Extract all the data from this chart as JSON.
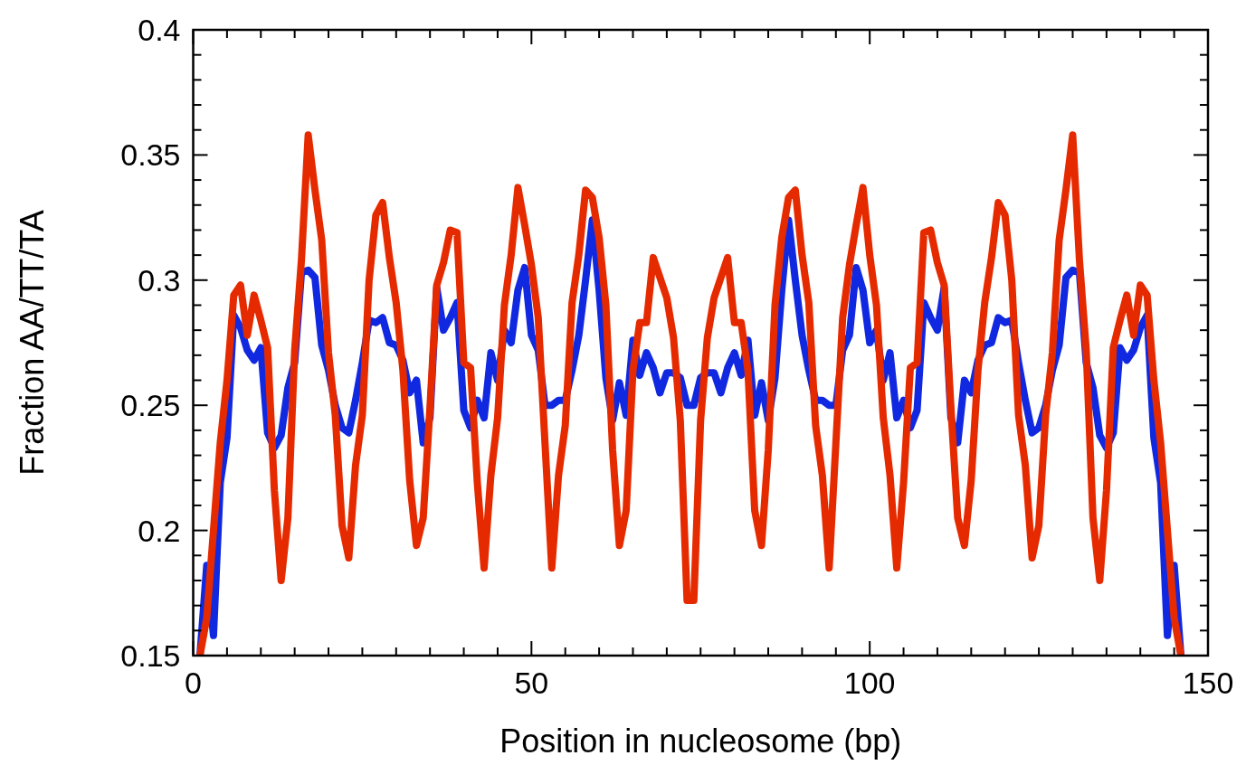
{
  "chart_data": {
    "type": "line",
    "xlabel": "Position in nucleosome (bp)",
    "ylabel": "Fraction AA/TT/TA",
    "xlim": [
      0,
      150
    ],
    "ylim": [
      0.15,
      0.4
    ],
    "xticks": [
      0,
      {
        "value": 5,
        "label": null
      },
      {
        "value": 10,
        "label": null
      },
      {
        "value": 15,
        "label": null
      },
      {
        "value": 20,
        "label": null
      },
      {
        "value": 25,
        "label": null
      },
      {
        "value": 30,
        "label": null
      },
      {
        "value": 35,
        "label": null
      },
      {
        "value": 40,
        "label": null
      },
      {
        "value": 45,
        "label": null
      },
      50,
      {
        "value": 55,
        "label": null
      },
      {
        "value": 60,
        "label": null
      },
      {
        "value": 65,
        "label": null
      },
      {
        "value": 70,
        "label": null
      },
      {
        "value": 75,
        "label": null
      },
      {
        "value": 80,
        "label": null
      },
      {
        "value": 85,
        "label": null
      },
      {
        "value": 90,
        "label": null
      },
      {
        "value": 95,
        "label": null
      },
      100,
      {
        "value": 105,
        "label": null
      },
      {
        "value": 110,
        "label": null
      },
      {
        "value": 115,
        "label": null
      },
      {
        "value": 120,
        "label": null
      },
      {
        "value": 125,
        "label": null
      },
      {
        "value": 130,
        "label": null
      },
      {
        "value": 135,
        "label": null
      },
      {
        "value": 140,
        "label": null
      },
      {
        "value": 145,
        "label": null
      },
      150
    ],
    "yticks": [
      0.15,
      {
        "value": 0.16,
        "label": null
      },
      {
        "value": 0.17,
        "label": null
      },
      {
        "value": 0.18,
        "label": null
      },
      {
        "value": 0.19,
        "label": null
      },
      0.2,
      {
        "value": 0.21,
        "label": null
      },
      {
        "value": 0.22,
        "label": null
      },
      {
        "value": 0.23,
        "label": null
      },
      {
        "value": 0.24,
        "label": null
      },
      0.25,
      {
        "value": 0.26,
        "label": null
      },
      {
        "value": 0.27,
        "label": null
      },
      {
        "value": 0.28,
        "label": null
      },
      {
        "value": 0.29,
        "label": null
      },
      0.3,
      {
        "value": 0.31,
        "label": null
      },
      {
        "value": 0.32,
        "label": null
      },
      {
        "value": 0.33,
        "label": null
      },
      {
        "value": 0.34,
        "label": null
      },
      0.35,
      {
        "value": 0.36,
        "label": null
      },
      {
        "value": 0.37,
        "label": null
      },
      {
        "value": 0.38,
        "label": null
      },
      {
        "value": 0.39,
        "label": null
      },
      0.4
    ],
    "grid": false,
    "marker": "none",
    "line_style": "solid",
    "x": [
      1,
      2,
      3,
      4,
      5,
      6,
      7,
      8,
      9,
      10,
      11,
      12,
      13,
      14,
      15,
      16,
      17,
      18,
      19,
      20,
      21,
      22,
      23,
      24,
      25,
      26,
      27,
      28,
      29,
      30,
      31,
      32,
      33,
      34,
      35,
      36,
      37,
      38,
      39,
      40,
      41,
      42,
      43,
      44,
      45,
      46,
      47,
      48,
      49,
      50,
      51,
      52,
      53,
      54,
      55,
      56,
      57,
      58,
      59,
      60,
      61,
      62,
      63,
      64,
      65,
      66,
      67,
      68,
      69,
      70,
      71,
      72,
      73,
      74,
      75,
      76,
      77,
      78,
      79,
      80,
      81,
      82,
      83,
      84,
      85,
      86,
      87,
      88,
      89,
      90,
      91,
      92,
      93,
      94,
      95,
      96,
      97,
      98,
      99,
      100,
      101,
      102,
      103,
      104,
      105,
      106,
      107,
      108,
      109,
      110,
      111,
      112,
      113,
      114,
      115,
      116,
      117,
      118,
      119,
      120,
      121,
      122,
      123,
      124,
      125,
      126,
      127,
      128,
      129,
      130,
      131,
      132,
      133,
      134,
      135,
      136,
      137,
      138,
      139,
      140,
      141,
      142,
      143,
      144,
      145,
      146
    ],
    "series": [
      {
        "color": "#1028e0",
        "values": [
          0.15,
          0.186,
          0.158,
          0.219,
          0.237,
          0.286,
          0.281,
          0.272,
          0.268,
          0.273,
          0.239,
          0.233,
          0.238,
          0.257,
          0.267,
          0.303,
          0.304,
          0.301,
          0.274,
          0.264,
          0.25,
          0.241,
          0.239,
          0.252,
          0.267,
          0.284,
          0.283,
          0.285,
          0.275,
          0.274,
          0.268,
          0.255,
          0.26,
          0.235,
          0.245,
          0.297,
          0.28,
          0.285,
          0.291,
          0.248,
          0.241,
          0.252,
          0.245,
          0.271,
          0.26,
          0.28,
          0.275,
          0.296,
          0.305,
          0.278,
          0.272,
          0.25,
          0.25,
          0.252,
          0.252,
          0.264,
          0.278,
          0.3,
          0.324,
          0.296,
          0.261,
          0.244,
          0.259,
          0.246,
          0.276,
          0.262,
          0.271,
          0.265,
          0.255,
          0.263,
          0.263,
          0.261,
          0.25,
          0.25,
          0.261,
          0.263,
          0.263,
          0.255,
          0.265,
          0.271,
          0.262,
          0.276,
          0.246,
          0.259,
          0.244,
          0.261,
          0.296,
          0.324,
          0.3,
          0.278,
          0.264,
          0.252,
          0.252,
          0.25,
          0.25,
          0.272,
          0.278,
          0.305,
          0.296,
          0.275,
          0.28,
          0.26,
          0.271,
          0.245,
          0.252,
          0.241,
          0.248,
          0.291,
          0.285,
          0.28,
          0.297,
          0.245,
          0.235,
          0.26,
          0.255,
          0.268,
          0.274,
          0.275,
          0.285,
          0.283,
          0.284,
          0.267,
          0.252,
          0.239,
          0.241,
          0.25,
          0.264,
          0.274,
          0.301,
          0.304,
          0.303,
          0.267,
          0.257,
          0.238,
          0.233,
          0.239,
          0.273,
          0.268,
          0.272,
          0.281,
          0.286,
          0.237,
          0.219,
          0.158,
          0.186,
          0.15
        ]
      },
      {
        "color": "#e62a00",
        "values": [
          0.15,
          0.165,
          0.2,
          0.235,
          0.26,
          0.294,
          0.298,
          0.278,
          0.294,
          0.284,
          0.273,
          0.216,
          0.18,
          0.205,
          0.272,
          0.308,
          0.358,
          0.336,
          0.316,
          0.271,
          0.246,
          0.202,
          0.189,
          0.226,
          0.246,
          0.3,
          0.326,
          0.331,
          0.309,
          0.291,
          0.264,
          0.22,
          0.194,
          0.205,
          0.249,
          0.298,
          0.307,
          0.32,
          0.319,
          0.267,
          0.265,
          0.219,
          0.185,
          0.222,
          0.245,
          0.29,
          0.31,
          0.337,
          0.322,
          0.306,
          0.285,
          0.235,
          0.185,
          0.222,
          0.242,
          0.291,
          0.31,
          0.336,
          0.333,
          0.317,
          0.29,
          0.232,
          0.194,
          0.208,
          0.264,
          0.283,
          0.283,
          0.309,
          0.301,
          0.293,
          0.277,
          0.244,
          0.172,
          0.172,
          0.244,
          0.277,
          0.293,
          0.301,
          0.309,
          0.283,
          0.283,
          0.264,
          0.208,
          0.194,
          0.232,
          0.29,
          0.317,
          0.333,
          0.336,
          0.31,
          0.291,
          0.242,
          0.222,
          0.185,
          0.235,
          0.285,
          0.306,
          0.322,
          0.337,
          0.31,
          0.29,
          0.245,
          0.222,
          0.185,
          0.219,
          0.265,
          0.267,
          0.319,
          0.32,
          0.307,
          0.298,
          0.249,
          0.205,
          0.194,
          0.22,
          0.264,
          0.291,
          0.309,
          0.331,
          0.326,
          0.3,
          0.246,
          0.226,
          0.189,
          0.202,
          0.246,
          0.271,
          0.316,
          0.336,
          0.358,
          0.308,
          0.272,
          0.205,
          0.18,
          0.216,
          0.273,
          0.284,
          0.294,
          0.278,
          0.298,
          0.294,
          0.26,
          0.235,
          0.2,
          0.165,
          0.15
        ]
      }
    ]
  }
}
